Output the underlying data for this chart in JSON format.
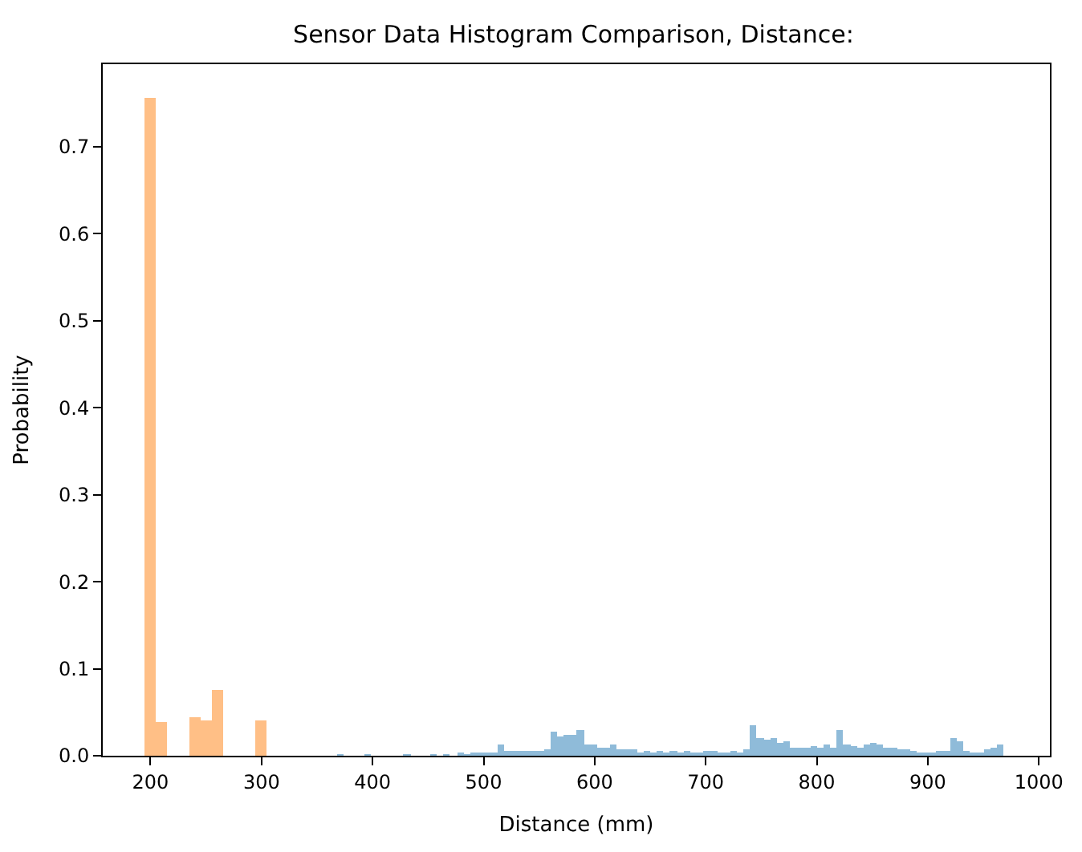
{
  "chart_data": {
    "type": "histogram",
    "title": "Sensor Data Histogram Comparison, Distance:",
    "xlabel": "Distance (mm)",
    "ylabel": "Probability",
    "bins": [
      195,
      205,
      215,
      235,
      245,
      255,
      265,
      295,
      305,
      368,
      374,
      392,
      398,
      428,
      434,
      452,
      458,
      464,
      470,
      476,
      482,
      488,
      494,
      500,
      506,
      512,
      518,
      524,
      530,
      536,
      542,
      548,
      554,
      560,
      566,
      572,
      578,
      584,
      590,
      596,
      602,
      608,
      614,
      620,
      626,
      632,
      638,
      644,
      650,
      656,
      662,
      668,
      674,
      680,
      686,
      692,
      698,
      704,
      710,
      716,
      722,
      728,
      734,
      740,
      746,
      752,
      758,
      764,
      770,
      776,
      782,
      788,
      794,
      800,
      806,
      812,
      818,
      824,
      830,
      836,
      842,
      848,
      854,
      860,
      866,
      872,
      878,
      884,
      890,
      896,
      902,
      908,
      914,
      920,
      926,
      932,
      938,
      944,
      950,
      956,
      962,
      968
    ],
    "series": [
      {
        "color": "#8fbbd9",
        "values": [
          null,
          null,
          null,
          null,
          null,
          null,
          null,
          null,
          null,
          0.001,
          0,
          0.001,
          0,
          0.001,
          0,
          0.001,
          0,
          0.001,
          0,
          0.002,
          0.001,
          0.002,
          0.003,
          0.003,
          0.004,
          0.012,
          0.006,
          0.006,
          0.005,
          0.006,
          0.005,
          0.005,
          0.007,
          0.027,
          0.022,
          0.024,
          0.024,
          0.03,
          0.012,
          0.012,
          0.01,
          0.009,
          0.012,
          0.007,
          0.007,
          0.008,
          0.004,
          0.005,
          0.003,
          0.006,
          0.004,
          0.005,
          0.003,
          0.006,
          0.004,
          0.003,
          0.005,
          0.006,
          0.004,
          0.003,
          0.005,
          0.004,
          0.007,
          0.035,
          0.02,
          0.018,
          0.02,
          0.014,
          0.016,
          0.01,
          0.01,
          0.01,
          0.011,
          0.01,
          0.012,
          0.009,
          0.03,
          0.013,
          0.011,
          0.01,
          0.012,
          0.014,
          0.013,
          0.01,
          0.009,
          0.008,
          0.008,
          0.006,
          0.003,
          0.004,
          0.004,
          0.005,
          0.006,
          0.02,
          0.016,
          0.005,
          0.003,
          0.004,
          0.008,
          0.01,
          0.012
        ]
      },
      {
        "color": "#ffbf86",
        "values": [
          0.757,
          0.038,
          0,
          0.045,
          0.04,
          0.075,
          0,
          0.04,
          null,
          null,
          null,
          null,
          null,
          null,
          null,
          null,
          null,
          null,
          null,
          null,
          null,
          null,
          null,
          null,
          null,
          null,
          null,
          null,
          null,
          null,
          null,
          null,
          null,
          null,
          null,
          null,
          null,
          null,
          null,
          null,
          null,
          null,
          null,
          null,
          null,
          null,
          null,
          null,
          null,
          null,
          null,
          null,
          null,
          null,
          null,
          null,
          null,
          null,
          null,
          null,
          null,
          null,
          null,
          null,
          null,
          null,
          null,
          null,
          null,
          null,
          null,
          null,
          null,
          null,
          null,
          null,
          null,
          null,
          null,
          null,
          null,
          null,
          null,
          null,
          null,
          null,
          null,
          null,
          null,
          null,
          null,
          null,
          null,
          null,
          null,
          null,
          null,
          null,
          null,
          null,
          null
        ]
      }
    ],
    "xlim": [
      157,
      1010
    ],
    "xticks": [
      200,
      300,
      400,
      500,
      600,
      700,
      800,
      900,
      1000
    ],
    "ylim": [
      0,
      0.795
    ],
    "yticks": [
      {
        "value": 0,
        "label": "0.0"
      },
      0.1,
      0.2,
      0.3,
      0.4,
      0.5,
      0.6,
      0.7
    ]
  }
}
